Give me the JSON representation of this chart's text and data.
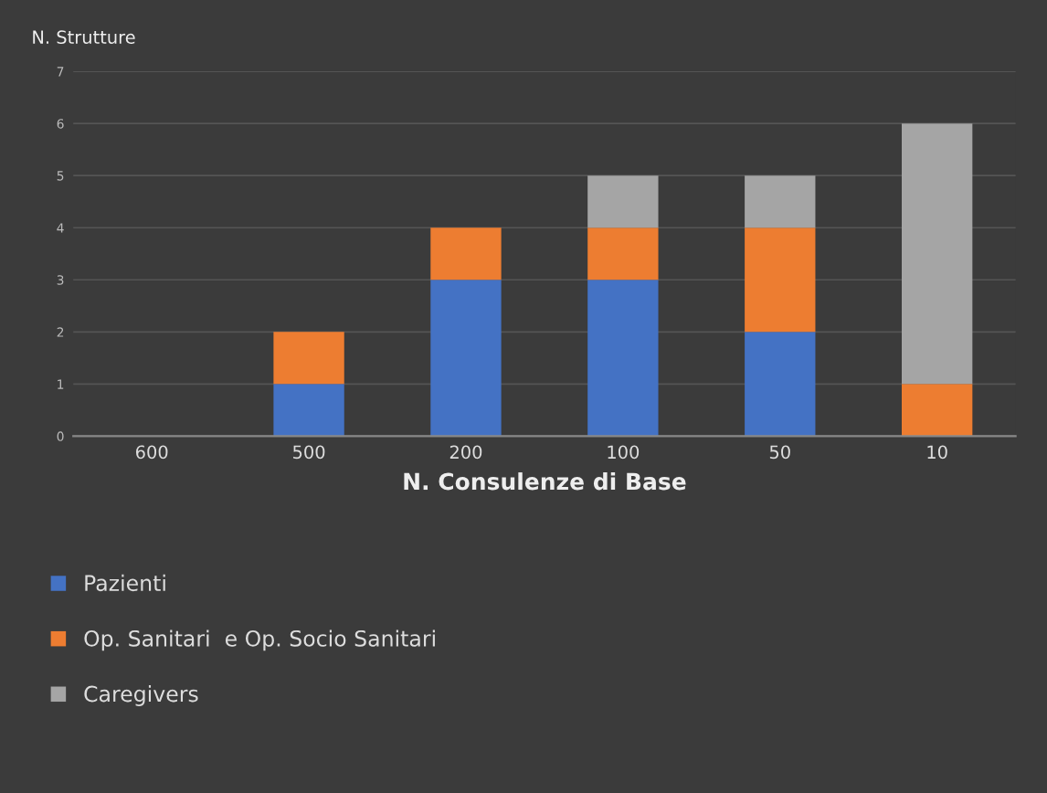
{
  "chart_data": {
    "type": "bar",
    "stacked": true,
    "ylabel": "N. Strutture",
    "xlabel": "N. Consulenze di Base",
    "categories": [
      "600",
      "500",
      "200",
      "100",
      "50",
      "10"
    ],
    "series": [
      {
        "name": "Pazienti",
        "color": "#4472c4",
        "values": [
          0,
          1,
          3,
          3,
          2,
          0
        ]
      },
      {
        "name": "Op. Sanitari  e Op. Socio Sanitari",
        "color": "#ed7d31",
        "values": [
          0,
          1,
          1,
          1,
          2,
          1
        ]
      },
      {
        "name": "Caregivers",
        "color": "#a5a5a5",
        "values": [
          0,
          0,
          0,
          1,
          1,
          5
        ]
      }
    ],
    "ylim": [
      0,
      7
    ],
    "yticks": [
      0,
      1,
      2,
      3,
      4,
      5,
      6,
      7
    ],
    "grid": "y",
    "legend": "bottom"
  }
}
